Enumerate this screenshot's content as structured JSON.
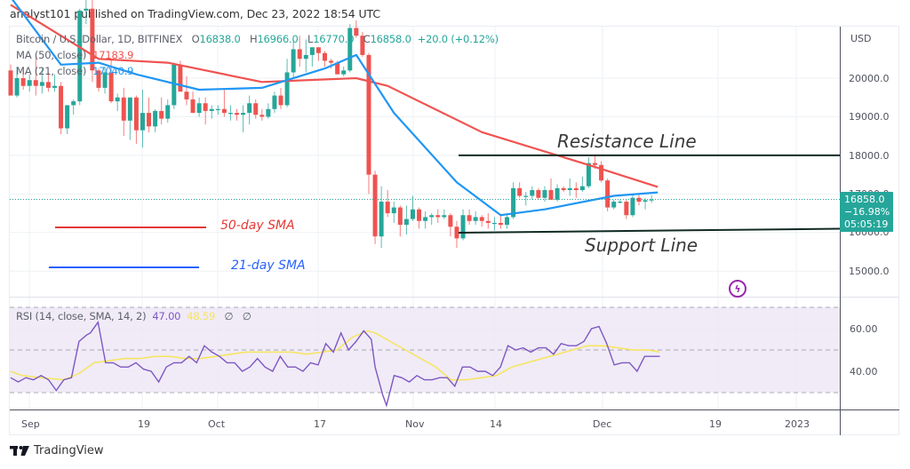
{
  "header": {
    "published": "analyst101 published on TradingView.com, Dec 23, 2022 18:54 UTC"
  },
  "legend": {
    "symbol": "Bitcoin / U.S. Dollar, 1D, BITFINEX",
    "o_label": "O",
    "o": "16838.0",
    "h_label": "H",
    "h": "16966.0",
    "l_label": "L",
    "l": "16770.0",
    "c_label": "C",
    "c": "16858.0",
    "change": "+20.0 (+0.12%)",
    "ma50_label": "MA (50, close)",
    "ma50_value": "17183.9",
    "ma21_label": "MA (21, close)",
    "ma21_value": "17040.9"
  },
  "rsi_legend": {
    "label": "RSI (14, close, SMA, 14, 2)",
    "rsi": "47.00",
    "sma": "48.59",
    "empty1": "∅",
    "empty2": "∅"
  },
  "price_axis": {
    "currency": "USD",
    "ticks": [
      "20000.0",
      "19000.0",
      "18000.0",
      "17000.0",
      "16000.0",
      "15000.0"
    ],
    "last_price": "16858.0",
    "last_change": "−16.98%",
    "countdown": "05:05:19"
  },
  "rsi_axis": {
    "ticks": [
      "60.00",
      "40.00"
    ]
  },
  "time_axis": {
    "ticks": [
      "Sep",
      "19",
      "Oct",
      "17",
      "Nov",
      "14",
      "Dec",
      "19",
      "2023"
    ]
  },
  "annotations": {
    "resistance": "Resistance Line",
    "support": "Support Line",
    "sma50": "50-day SMA",
    "sma21": "21-day SMA"
  },
  "footer": {
    "brand": "TradingView"
  },
  "colors": {
    "up": "#26a69a",
    "down": "#ef5350",
    "ma50": "#ef5350",
    "ma21": "#2196f3",
    "rsi": "#7e57c2",
    "rsi_sma": "#f7e55a",
    "rsi_band": "#ede7f6",
    "grid": "#eef1f6",
    "annot_red": "#e53935",
    "annot_blue": "#2962ff",
    "text": "#333333"
  },
  "chart_data": {
    "type": "candlestick",
    "title": "Bitcoin / U.S. Dollar, 1D, BITFINEX",
    "ylabel": "USD",
    "ylim": [
      14400,
      21300
    ],
    "x_ticks": [
      "Sep",
      "19",
      "Oct",
      "17",
      "Nov",
      "14",
      "Dec",
      "19",
      "2023"
    ],
    "start_date": "2022-08-29",
    "ohlc": [
      [
        20200,
        20350,
        19550,
        19550
      ],
      [
        19550,
        20300,
        19500,
        20000
      ],
      [
        20000,
        20300,
        19700,
        19800
      ],
      [
        19800,
        20100,
        19650,
        19950
      ],
      [
        19950,
        20550,
        19550,
        19800
      ],
      [
        19800,
        20250,
        19600,
        19900
      ],
      [
        19900,
        20150,
        19650,
        19750
      ],
      [
        19750,
        20100,
        19650,
        19800
      ],
      [
        19800,
        19900,
        18550,
        18700
      ],
      [
        18700,
        19300,
        18550,
        19300
      ],
      [
        19300,
        19450,
        19050,
        19400
      ],
      [
        19400,
        21800,
        19300,
        21750
      ],
      [
        21750,
        22300,
        21400,
        21800
      ],
      [
        21800,
        22500,
        19900,
        20200
      ],
      [
        20200,
        20250,
        19650,
        19750
      ],
      [
        19750,
        20300,
        19600,
        20150
      ],
      [
        20150,
        20500,
        19350,
        19400
      ],
      [
        19400,
        19600,
        19150,
        19500
      ],
      [
        19500,
        19750,
        18500,
        18900
      ],
      [
        18900,
        19150,
        18400,
        19500
      ],
      [
        19500,
        19550,
        18300,
        18650
      ],
      [
        18650,
        19700,
        18200,
        19100
      ],
      [
        19100,
        19500,
        18600,
        18750
      ],
      [
        18750,
        19200,
        18600,
        19150
      ],
      [
        19150,
        19500,
        18800,
        18950
      ],
      [
        18950,
        19450,
        18850,
        19300
      ],
      [
        19300,
        20400,
        19200,
        20350
      ],
      [
        20350,
        20450,
        19700,
        19650
      ],
      [
        19650,
        20050,
        19300,
        19450
      ],
      [
        19450,
        19650,
        19100,
        19100
      ],
      [
        19100,
        19500,
        19000,
        19350
      ],
      [
        19350,
        19500,
        18800,
        19150
      ],
      [
        19150,
        19300,
        18950,
        19200
      ],
      [
        19200,
        19300,
        19050,
        19200
      ],
      [
        19200,
        19700,
        19000,
        19100
      ],
      [
        19100,
        19300,
        18900,
        19100
      ],
      [
        19100,
        19200,
        18900,
        19050
      ],
      [
        19050,
        19300,
        18600,
        19100
      ],
      [
        19100,
        19550,
        18800,
        19350
      ],
      [
        19350,
        19450,
        18950,
        19050
      ],
      [
        19050,
        19200,
        18900,
        19000
      ],
      [
        19000,
        19350,
        18950,
        19200
      ],
      [
        19200,
        19650,
        19100,
        19550
      ],
      [
        19550,
        19750,
        19200,
        19300
      ],
      [
        19300,
        20500,
        19250,
        20150
      ],
      [
        20150,
        21000,
        20000,
        20750
      ],
      [
        20750,
        21100,
        20300,
        20500
      ],
      [
        20500,
        21000,
        20150,
        20600
      ],
      [
        20600,
        20800,
        20300,
        20800
      ],
      [
        20800,
        20800,
        20450,
        20650
      ],
      [
        20650,
        20700,
        20300,
        20450
      ],
      [
        20450,
        20500,
        20250,
        20400
      ],
      [
        20400,
        20450,
        20100,
        20100
      ],
      [
        20100,
        20300,
        20050,
        20200
      ],
      [
        20200,
        21400,
        20150,
        21300
      ],
      [
        21300,
        21500,
        21050,
        21100
      ],
      [
        21100,
        21200,
        20550,
        20600
      ],
      [
        20600,
        20650,
        17000,
        17500
      ],
      [
        17500,
        17600,
        15700,
        15900
      ],
      [
        15900,
        17200,
        15600,
        16800
      ],
      [
        16800,
        17100,
        16400,
        16500
      ],
      [
        16500,
        16800,
        16250,
        16650
      ],
      [
        16650,
        16700,
        15900,
        16200
      ],
      [
        16200,
        16700,
        15950,
        16350
      ],
      [
        16350,
        16950,
        16300,
        16600
      ],
      [
        16600,
        16650,
        16100,
        16300
      ],
      [
        16300,
        16550,
        16100,
        16400
      ],
      [
        16400,
        16500,
        16200,
        16450
      ],
      [
        16450,
        16600,
        16250,
        16400
      ],
      [
        16400,
        16600,
        16350,
        16450
      ],
      [
        16450,
        16500,
        15900,
        16150
      ],
      [
        16150,
        16300,
        15600,
        15850
      ],
      [
        15850,
        16600,
        15800,
        16450
      ],
      [
        16450,
        16600,
        16200,
        16300
      ],
      [
        16300,
        16550,
        16200,
        16400
      ],
      [
        16400,
        16450,
        16150,
        16300
      ],
      [
        16300,
        16500,
        16100,
        16250
      ],
      [
        16250,
        16400,
        16050,
        16250
      ],
      [
        16250,
        16450,
        16100,
        16200
      ],
      [
        16200,
        16500,
        16100,
        16400
      ],
      [
        16400,
        17300,
        16350,
        17150
      ],
      [
        17150,
        17300,
        16900,
        16950
      ],
      [
        16950,
        17050,
        16700,
        16950
      ],
      [
        16950,
        17200,
        16850,
        17100
      ],
      [
        17100,
        17150,
        16850,
        16900
      ],
      [
        16900,
        17200,
        16800,
        17100
      ],
      [
        17100,
        17400,
        16850,
        16850
      ],
      [
        16850,
        17250,
        16800,
        17150
      ],
      [
        17150,
        17200,
        17050,
        17100
      ],
      [
        17100,
        17400,
        16950,
        17150
      ],
      [
        17150,
        17300,
        16900,
        17100
      ],
      [
        17100,
        17450,
        17050,
        17200
      ],
      [
        17200,
        17950,
        17150,
        17800
      ],
      [
        17800,
        18000,
        17650,
        17750
      ],
      [
        17750,
        17850,
        17300,
        17350
      ],
      [
        17350,
        17400,
        16550,
        16650
      ],
      [
        16650,
        16850,
        16600,
        16800
      ],
      [
        16800,
        16850,
        16750,
        16800
      ],
      [
        16800,
        16850,
        16350,
        16450
      ],
      [
        16450,
        16980,
        16400,
        16900
      ],
      [
        16900,
        16980,
        16700,
        16800
      ],
      [
        16800,
        16900,
        16600,
        16838
      ],
      [
        16838,
        16966,
        16770,
        16858
      ]
    ],
    "ma50": [
      [
        0,
        21900
      ],
      [
        14,
        20500
      ],
      [
        25,
        20400
      ],
      [
        40,
        19900
      ],
      [
        55,
        20000
      ],
      [
        60,
        19800
      ],
      [
        75,
        18600
      ],
      [
        93,
        17700
      ],
      [
        103,
        17184
      ]
    ],
    "ma21": [
      [
        0,
        22100
      ],
      [
        8,
        20350
      ],
      [
        14,
        20400
      ],
      [
        20,
        20100
      ],
      [
        30,
        19700
      ],
      [
        40,
        19750
      ],
      [
        50,
        20250
      ],
      [
        55,
        20600
      ],
      [
        61,
        19100
      ],
      [
        71,
        17300
      ],
      [
        78,
        16450
      ],
      [
        85,
        16600
      ],
      [
        96,
        16950
      ],
      [
        103,
        17041
      ]
    ],
    "resistance_level": 18000,
    "support_level": 16020,
    "rsi": {
      "ylim": [
        30,
        70
      ],
      "bands": [
        70,
        50,
        30
      ],
      "series_rsi": [
        [
          0,
          37
        ],
        [
          2,
          35
        ],
        [
          4,
          37
        ],
        [
          6,
          36
        ],
        [
          8,
          38
        ],
        [
          10,
          36
        ],
        [
          12,
          31
        ],
        [
          14,
          36
        ],
        [
          16,
          37
        ],
        [
          18,
          54
        ],
        [
          20,
          57
        ],
        [
          21,
          58
        ],
        [
          23,
          63
        ],
        [
          25,
          44
        ],
        [
          27,
          44
        ],
        [
          29,
          42
        ],
        [
          31,
          42
        ],
        [
          33,
          44
        ],
        [
          35,
          41
        ],
        [
          37,
          40
        ],
        [
          39,
          35
        ],
        [
          41,
          42
        ],
        [
          43,
          44
        ],
        [
          45,
          44
        ],
        [
          47,
          47
        ],
        [
          49,
          44
        ],
        [
          51,
          52
        ],
        [
          53,
          49
        ],
        [
          55,
          47
        ],
        [
          57,
          44
        ],
        [
          59,
          44
        ],
        [
          61,
          40
        ],
        [
          63,
          42
        ],
        [
          65,
          46
        ],
        [
          67,
          42
        ],
        [
          69,
          40
        ],
        [
          71,
          47
        ],
        [
          73,
          42
        ],
        [
          75,
          42
        ],
        [
          77,
          40
        ],
        [
          79,
          44
        ],
        [
          81,
          43
        ],
        [
          83,
          53
        ],
        [
          85,
          49
        ],
        [
          87,
          58
        ],
        [
          89,
          50
        ],
        [
          91,
          54
        ],
        [
          93,
          59
        ],
        [
          95,
          55
        ],
        [
          96,
          42
        ],
        [
          98,
          29
        ],
        [
          99,
          24
        ],
        [
          101,
          38
        ],
        [
          103,
          37
        ],
        [
          105,
          35
        ],
        [
          107,
          38
        ],
        [
          109,
          36
        ],
        [
          111,
          36
        ],
        [
          113,
          37
        ],
        [
          115,
          37
        ],
        [
          117,
          33
        ],
        [
          119,
          42
        ],
        [
          121,
          42
        ],
        [
          123,
          40
        ],
        [
          125,
          40
        ],
        [
          127,
          38
        ],
        [
          129,
          42
        ],
        [
          131,
          52
        ],
        [
          133,
          50
        ],
        [
          135,
          51
        ],
        [
          137,
          49
        ],
        [
          139,
          51
        ],
        [
          141,
          51
        ],
        [
          143,
          48
        ],
        [
          145,
          53
        ],
        [
          147,
          52
        ],
        [
          149,
          52
        ],
        [
          151,
          54
        ],
        [
          153,
          60
        ],
        [
          155,
          61
        ],
        [
          157,
          53
        ],
        [
          159,
          43
        ],
        [
          161,
          44
        ],
        [
          163,
          44
        ],
        [
          165,
          40
        ],
        [
          167,
          47
        ],
        [
          169,
          47
        ],
        [
          171,
          47
        ]
      ],
      "series_sma": [
        [
          0,
          40
        ],
        [
          3,
          38
        ],
        [
          8,
          37
        ],
        [
          14,
          36
        ],
        [
          18,
          39
        ],
        [
          22,
          44
        ],
        [
          26,
          45
        ],
        [
          30,
          46
        ],
        [
          34,
          46
        ],
        [
          38,
          47
        ],
        [
          42,
          47
        ],
        [
          46,
          46
        ],
        [
          50,
          46
        ],
        [
          54,
          47
        ],
        [
          58,
          48
        ],
        [
          62,
          49
        ],
        [
          66,
          49
        ],
        [
          70,
          49
        ],
        [
          74,
          49
        ],
        [
          78,
          48
        ],
        [
          82,
          49
        ],
        [
          86,
          50
        ],
        [
          90,
          56
        ],
        [
          94,
          59
        ],
        [
          96,
          58
        ],
        [
          100,
          54
        ],
        [
          104,
          50
        ],
        [
          108,
          46
        ],
        [
          112,
          42
        ],
        [
          116,
          36
        ],
        [
          120,
          36
        ],
        [
          124,
          37
        ],
        [
          128,
          38
        ],
        [
          132,
          42
        ],
        [
          136,
          44
        ],
        [
          140,
          46
        ],
        [
          144,
          48
        ],
        [
          148,
          50
        ],
        [
          152,
          52
        ],
        [
          156,
          52
        ],
        [
          160,
          51
        ],
        [
          164,
          50
        ],
        [
          168,
          50
        ],
        [
          171,
          49
        ]
      ]
    }
  }
}
